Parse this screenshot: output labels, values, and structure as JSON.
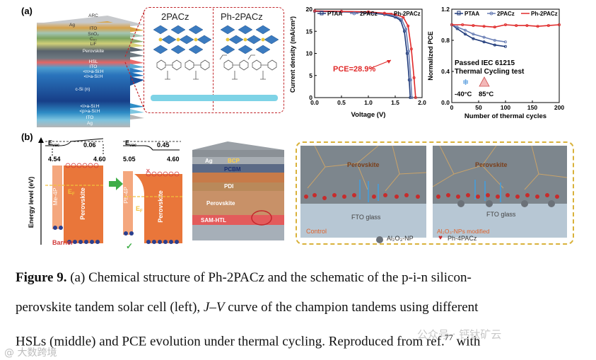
{
  "panel_a": {
    "label": "(a)",
    "stack_layers": [
      "ARC",
      "Ag",
      "ITO",
      "SnO₂",
      "C₆₀",
      "LiF",
      "Perovskite",
      "HSL",
      "ITO",
      "<n>a-Si:H",
      "<i>a-Si:H",
      "c-Si (n)",
      "<i>a-Si:H",
      "<p>a-Si:H",
      "ITO",
      "Ag"
    ],
    "molecule_left": "2PACz",
    "molecule_right": "Ph-2PACz"
  },
  "jv_chart": {
    "type": "line",
    "x_label": "Voltage (V)",
    "y_label": "Current density (mA/cm²)",
    "x_ticks": [
      "0.0",
      "0.5",
      "1.0",
      "1.5",
      "2.0"
    ],
    "y_ticks": [
      "0",
      "5",
      "10",
      "15",
      "20"
    ],
    "xlim": [
      0,
      2.0
    ],
    "ylim": [
      0,
      20
    ],
    "legend": [
      "PTAA",
      "2PACz",
      "Ph-2PACz"
    ],
    "annotation": "PCE=28.9%",
    "series": [
      {
        "name": "PTAA",
        "color": "#1f3a7a",
        "values": [
          [
            0,
            19.5
          ],
          [
            0.5,
            19.4
          ],
          [
            1.0,
            19.2
          ],
          [
            1.3,
            18.8
          ],
          [
            1.5,
            18.2
          ],
          [
            1.6,
            17.5
          ],
          [
            1.67,
            15.0
          ],
          [
            1.72,
            10.0
          ],
          [
            1.76,
            4.0
          ],
          [
            1.78,
            0
          ]
        ]
      },
      {
        "name": "2PACz",
        "color": "#6a7fb5",
        "values": [
          [
            0,
            19.6
          ],
          [
            0.5,
            19.5
          ],
          [
            1.0,
            19.3
          ],
          [
            1.3,
            19.0
          ],
          [
            1.5,
            18.5
          ],
          [
            1.62,
            17.7
          ],
          [
            1.7,
            15.5
          ],
          [
            1.75,
            10.5
          ],
          [
            1.79,
            4.0
          ],
          [
            1.81,
            0
          ]
        ]
      },
      {
        "name": "Ph-2PACz",
        "color": "#e02a2a",
        "values": [
          [
            0,
            19.6
          ],
          [
            0.5,
            19.5
          ],
          [
            1.0,
            19.4
          ],
          [
            1.3,
            19.1
          ],
          [
            1.5,
            18.8
          ],
          [
            1.65,
            18.2
          ],
          [
            1.74,
            16.2
          ],
          [
            1.8,
            11.0
          ],
          [
            1.85,
            4.5
          ],
          [
            1.88,
            0
          ]
        ]
      }
    ]
  },
  "pce_chart": {
    "type": "line",
    "x_label": "Number of thermal cycles",
    "y_label": "Normalized PCE",
    "x_ticks": [
      "0",
      "50",
      "100",
      "150",
      "200"
    ],
    "y_ticks": [
      "0.0",
      "0.4",
      "0.8",
      "1.2"
    ],
    "xlim": [
      0,
      200
    ],
    "ylim": [
      0,
      1.2
    ],
    "legend": [
      "PTAA",
      "2PACz",
      "Ph-2PACz"
    ],
    "annotation_1": "Passed IEC 61215",
    "annotation_2": "Thermal Cycling test",
    "temp_low": "-40°C",
    "temp_high": "85°C",
    "series": [
      {
        "name": "PTAA",
        "color": "#1f3a7a",
        "values": [
          [
            0,
            1.0
          ],
          [
            10,
            0.95
          ],
          [
            25,
            0.88
          ],
          [
            40,
            0.82
          ],
          [
            60,
            0.78
          ],
          [
            80,
            0.74
          ],
          [
            100,
            0.72
          ]
        ]
      },
      {
        "name": "2PACz",
        "color": "#6a7fb5",
        "values": [
          [
            0,
            1.0
          ],
          [
            10,
            0.97
          ],
          [
            25,
            0.93
          ],
          [
            40,
            0.88
          ],
          [
            60,
            0.84
          ],
          [
            80,
            0.8
          ],
          [
            100,
            0.78
          ]
        ]
      },
      {
        "name": "Ph-2PACz",
        "color": "#e02a2a",
        "values": [
          [
            0,
            1.0
          ],
          [
            20,
            1.0
          ],
          [
            40,
            0.99
          ],
          [
            60,
            0.98
          ],
          [
            80,
            0.97
          ],
          [
            100,
            1.0
          ],
          [
            120,
            0.99
          ],
          [
            140,
            0.99
          ],
          [
            160,
            0.98
          ],
          [
            180,
            0.99
          ],
          [
            200,
            1.0
          ]
        ]
      }
    ]
  },
  "panel_b": {
    "label": "(b)",
    "y_axis": "Energy level (eV)",
    "left_evac": "E",
    "evac_sub": "vac",
    "left_delta": "0.06",
    "left_wf1": "4.54",
    "left_wf2": "4.60",
    "left_htl": "Me-4P",
    "left_pero": "Perovskite",
    "left_ef": "E",
    "ef_sub": "F",
    "barrier": "Barrier",
    "right_delta": "0.45",
    "right_wf1": "5.05",
    "right_wf2": "4.60",
    "right_htl": "Ph-4P",
    "right_pero": "Perovskite",
    "device_layers": [
      "Ag",
      "BCP",
      "PCBM",
      "PDI",
      "Perovskite",
      "SAM-HTL"
    ],
    "grain_left_title": "Perovskite",
    "grain_left_glass": "FTO glass",
    "grain_left_label": "Control",
    "grain_right_title": "Perovskite",
    "grain_right_glass": "FTO glass",
    "grain_right_label": "Al₂O₃-NPs modified",
    "legend_np": "Al₂O₃-NP",
    "legend_sam": "Ph-4PACz"
  },
  "caption": {
    "fig": "Figure 9.",
    "text1": " (a) Chemical structure of Ph-2PACz and the schematic of the p-i-n silicon-",
    "text2": "perovskite tandem solar cell (left), ",
    "jv": "J–V",
    "text3": " curve of the champion tandems using different",
    "text4": "HSLs (middle) and PCE evolution under thermal cycling. Reproduced from ref.",
    "ref": "77",
    "text5": " with"
  },
  "watermark_left": "@ 大数跨境",
  "watermark_right": "公众号 · 钙钛矿云"
}
